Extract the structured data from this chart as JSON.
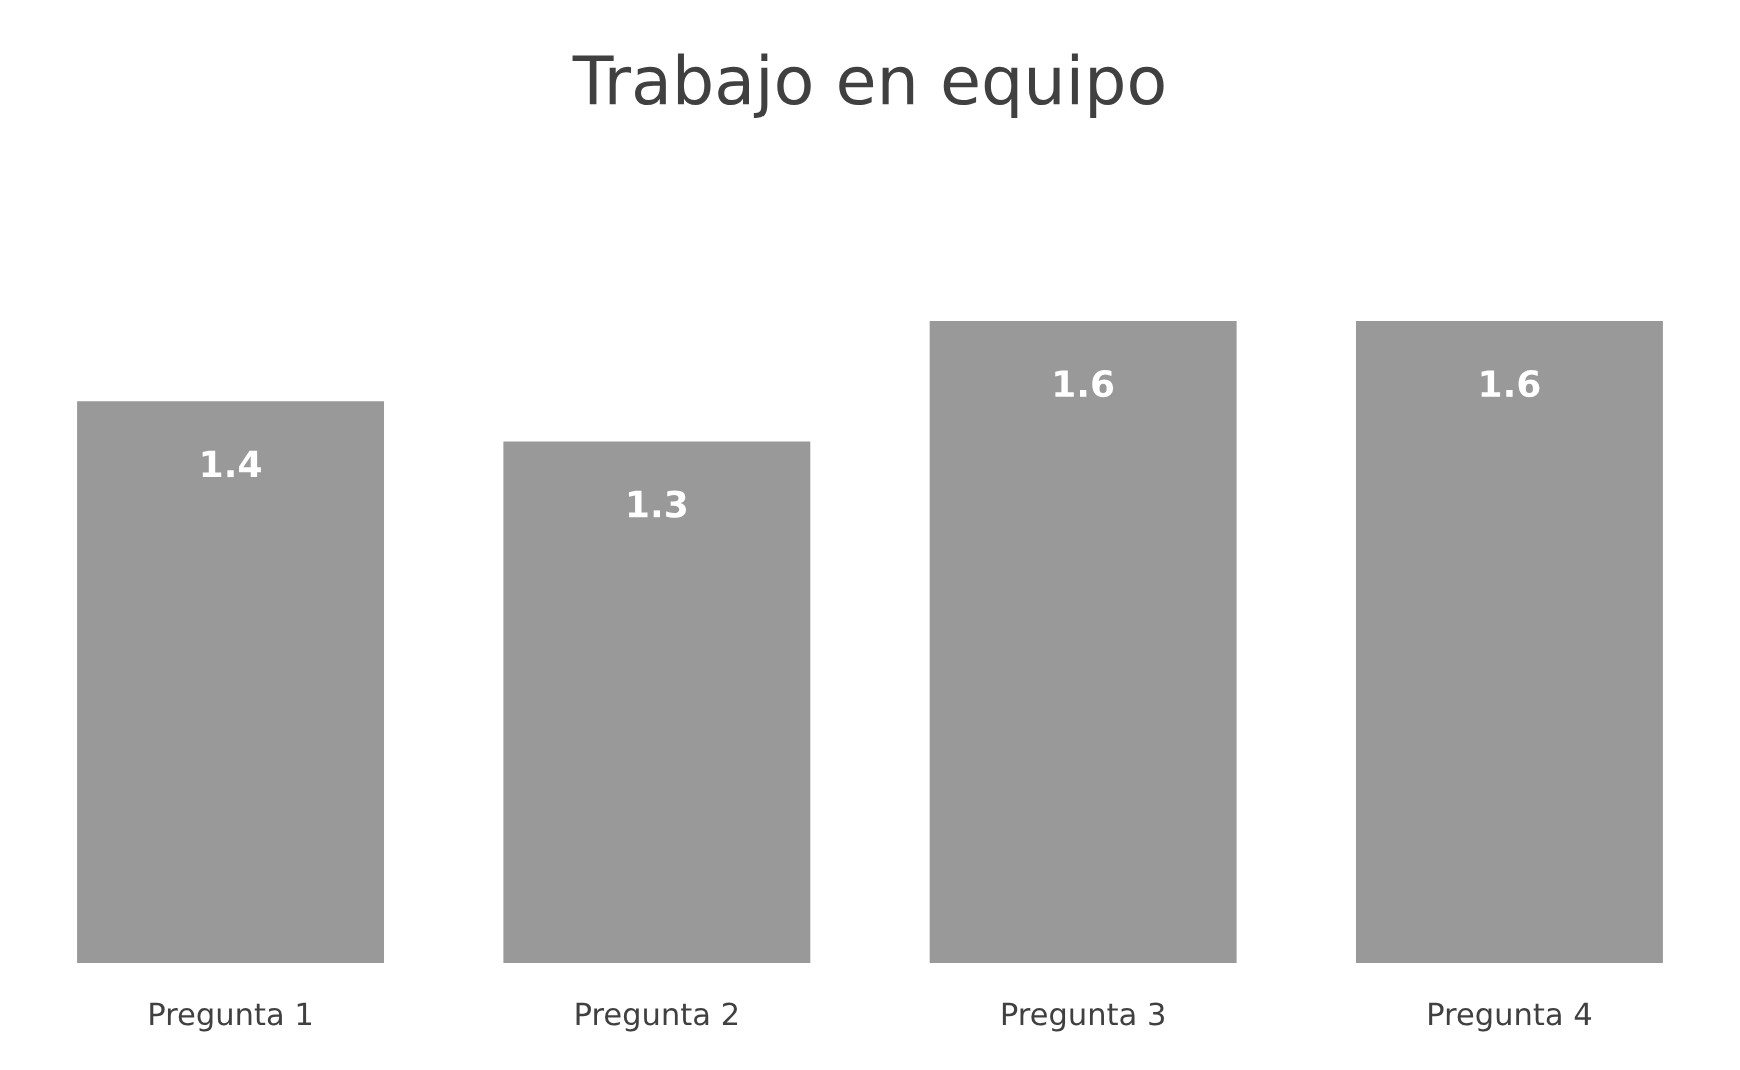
{
  "chart_data": {
    "type": "bar",
    "title": "Trabajo en equipo",
    "categories": [
      "Pregunta 1",
      "Pregunta 2",
      "Pregunta 3",
      "Pregunta 4"
    ],
    "values": [
      1.4,
      1.3,
      1.6,
      1.6
    ],
    "color": "#999999",
    "data_labels": true,
    "grid": false,
    "legend": false
  }
}
